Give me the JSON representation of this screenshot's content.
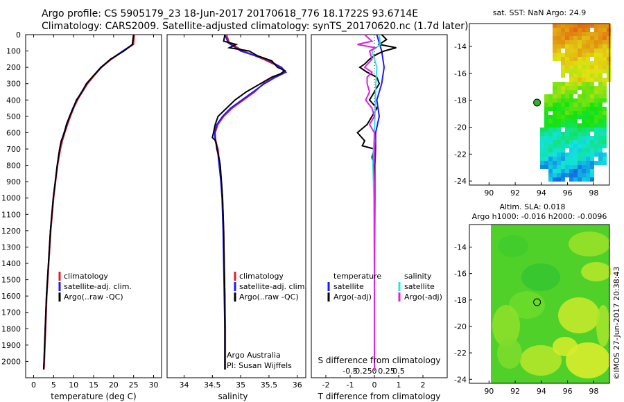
{
  "header": {
    "line1": "Argo profile: CS 5905179_23 18-Jun-2017 20170618_776 18.1722S 93.6714E",
    "line2": "Climatology: CARS2009. Satellite-adjusted climatology: synTS_20170620.nc (1.7d later)"
  },
  "colors": {
    "climatology": "#e02020",
    "satellite": "#1a1aff",
    "argo": "#000000",
    "argo_salinity_diff": "#e020e0",
    "satellite_salinity_diff": "#30e0e0"
  },
  "chart_data": [
    {
      "type": "line",
      "id": "temperature",
      "xlabel": "temperature (deg C)",
      "ylabel": "",
      "xlim": [
        -2,
        32
      ],
      "ylim": [
        2100,
        0
      ],
      "xticks": [
        "0",
        "5",
        "10",
        "15",
        "20",
        "25",
        "30"
      ],
      "xtick_values": [
        0,
        5,
        10,
        15,
        20,
        25,
        30
      ],
      "yticks": [
        "0",
        "100",
        "200",
        "300",
        "400",
        "500",
        "600",
        "700",
        "800",
        "900",
        "1000",
        "1100",
        "1200",
        "1300",
        "1400",
        "1500",
        "1600",
        "1700",
        "1800",
        "1900",
        "2000"
      ],
      "ytick_values": [
        0,
        100,
        200,
        300,
        400,
        500,
        600,
        700,
        800,
        900,
        1000,
        1100,
        1200,
        1300,
        1400,
        1500,
        1600,
        1700,
        1800,
        1900,
        2000
      ],
      "legend": [
        "climatology",
        "satellite-adj. clim.",
        "Argo(..raw -QC)"
      ],
      "legend_position": "lower-center",
      "series": [
        {
          "name": "climatology",
          "depth": [
            0,
            60,
            100,
            150,
            200,
            250,
            300,
            350,
            400,
            450,
            500,
            550,
            600,
            650,
            700,
            800,
            900,
            1000,
            1200,
            1400,
            1600,
            1800,
            2000,
            2050
          ],
          "values": [
            25.2,
            25.0,
            22.5,
            19.5,
            17.0,
            15.2,
            13.5,
            12.2,
            11.0,
            10.0,
            9.2,
            8.5,
            7.8,
            7.2,
            6.7,
            6.0,
            5.5,
            5.0,
            4.3,
            3.8,
            3.3,
            3.0,
            2.7,
            2.6
          ]
        },
        {
          "name": "satellite-adj. clim.",
          "depth": [
            0,
            60,
            100,
            150,
            200,
            250,
            300,
            350,
            400,
            450,
            500,
            550,
            600,
            650,
            700,
            800,
            900,
            1000,
            1200,
            1400,
            1600,
            1800,
            2000,
            2050
          ],
          "values": [
            25.0,
            24.8,
            22.3,
            19.3,
            16.8,
            15.0,
            13.3,
            12.0,
            10.8,
            9.8,
            9.0,
            8.3,
            7.6,
            7.0,
            6.5,
            5.9,
            5.4,
            4.9,
            4.2,
            3.7,
            3.2,
            2.9,
            2.6,
            2.5
          ]
        },
        {
          "name": "Argo(..raw -QC)",
          "depth": [
            0,
            60,
            100,
            150,
            200,
            250,
            300,
            350,
            400,
            450,
            500,
            550,
            600,
            650,
            700,
            800,
            900,
            1000,
            1200,
            1400,
            1600,
            1800,
            2000,
            2050
          ],
          "values": [
            25.0,
            24.7,
            22.6,
            19.2,
            16.9,
            15.0,
            13.2,
            12.1,
            10.7,
            9.9,
            9.0,
            8.2,
            7.7,
            6.9,
            6.5,
            5.9,
            5.4,
            4.9,
            4.2,
            3.7,
            3.2,
            2.9,
            2.6,
            2.5
          ]
        }
      ]
    },
    {
      "type": "line",
      "id": "salinity",
      "xlabel": "salinity",
      "xlim": [
        33.7,
        36.15
      ],
      "ylim": [
        2100,
        0
      ],
      "xticks": [
        "34",
        "34.5",
        "35",
        "35.5",
        "36"
      ],
      "xtick_values": [
        34,
        34.5,
        35,
        35.5,
        36
      ],
      "legend": [
        "climatology",
        "satellite-adj. clim.",
        "Argo(..raw -QC)"
      ],
      "legend_position": "lower-center",
      "annotation": [
        "Argo Australia",
        "PI: Susan Wijffels"
      ],
      "series": [
        {
          "name": "climatology",
          "depth": [
            0,
            50,
            100,
            150,
            200,
            230,
            260,
            300,
            350,
            400,
            450,
            500,
            550,
            600,
            650,
            700,
            800,
            900,
            1000,
            1200,
            1400,
            1600,
            1800,
            2000,
            2050
          ],
          "values": [
            34.75,
            34.8,
            35.05,
            35.4,
            35.7,
            35.78,
            35.6,
            35.4,
            35.25,
            35.05,
            34.85,
            34.7,
            34.6,
            34.55,
            34.56,
            34.6,
            34.63,
            34.66,
            34.68,
            34.7,
            34.71,
            34.72,
            34.73,
            34.73,
            34.73
          ]
        },
        {
          "name": "satellite-adj. clim.",
          "depth": [
            0,
            50,
            100,
            150,
            200,
            230,
            260,
            300,
            350,
            400,
            450,
            500,
            550,
            600,
            650,
            700,
            800,
            900,
            1000,
            1200,
            1400,
            1600,
            1800,
            2000,
            2050
          ],
          "values": [
            34.72,
            34.78,
            35.0,
            35.45,
            35.72,
            35.8,
            35.62,
            35.42,
            35.22,
            35.02,
            34.82,
            34.68,
            34.58,
            34.54,
            34.55,
            34.59,
            34.62,
            34.65,
            34.67,
            34.69,
            34.7,
            34.71,
            34.72,
            34.72,
            34.72
          ]
        },
        {
          "name": "Argo(..raw -QC)",
          "depth": [
            0,
            40,
            60,
            80,
            100,
            130,
            160,
            200,
            220,
            240,
            260,
            300,
            350,
            400,
            450,
            500,
            550,
            600,
            630,
            650,
            700,
            760,
            800,
            900,
            1000,
            1200,
            1400,
            1600,
            1800,
            2000,
            2050
          ],
          "values": [
            34.72,
            34.7,
            34.92,
            34.8,
            35.15,
            35.3,
            35.55,
            35.65,
            35.78,
            35.7,
            35.55,
            35.35,
            35.1,
            34.9,
            34.75,
            34.6,
            34.55,
            34.52,
            34.5,
            34.56,
            34.58,
            34.62,
            34.64,
            34.66,
            34.68,
            34.7,
            34.71,
            34.72,
            34.72,
            34.72,
            34.72
          ]
        }
      ]
    },
    {
      "type": "line",
      "id": "difference",
      "xlabel": "T difference from climatology",
      "xlabel_top": "S difference from climatology",
      "xlim": [
        -2.6,
        3.0
      ],
      "ylim": [
        2100,
        0
      ],
      "xticks": [
        "-2",
        "-1",
        "0",
        "1",
        "2"
      ],
      "xtick_values": [
        -2,
        -1,
        0,
        1,
        2
      ],
      "sticks": [
        "-0.5",
        "-0.25",
        "0",
        "0.25",
        "0.5"
      ],
      "stick_values": [
        -0.5,
        -0.25,
        0,
        0.25,
        0.5
      ],
      "legend_left_title": "temperature",
      "legend_right_title": "salinity",
      "legend": [
        "satellite",
        "Argo(-adj)",
        "satellite",
        "Argo(-adj)"
      ],
      "legend_position": "lower-center",
      "series": [
        {
          "name": "temperature satellite",
          "depth": [
            0,
            100,
            200,
            300,
            400,
            500,
            600,
            700,
            800,
            1000,
            1500,
            2000,
            2050
          ],
          "values": [
            0.1,
            0.3,
            0.4,
            0.3,
            0.1,
            0.2,
            0.05,
            0.05,
            0.02,
            0.02,
            0.0,
            0.0,
            0.0
          ]
        },
        {
          "name": "temperature Argo(-adj)",
          "depth": [
            0,
            30,
            60,
            80,
            100,
            120,
            150,
            180,
            200,
            230,
            260,
            300,
            350,
            400,
            450,
            500,
            550,
            600,
            650,
            680,
            700,
            750,
            800,
            1000,
            1500,
            2000,
            2050
          ],
          "values": [
            0.3,
            0.5,
            0.2,
            0.9,
            0.4,
            0.1,
            -0.2,
            -0.4,
            -0.6,
            -0.3,
            0.1,
            0.2,
            0.0,
            -0.2,
            0.1,
            -0.1,
            -0.3,
            -0.7,
            -0.4,
            -0.5,
            0.0,
            -0.1,
            0.0,
            0.0,
            0.0,
            0.0,
            0.0
          ]
        },
        {
          "name": "salinity satellite",
          "depth": [
            0,
            60,
            100,
            150,
            200,
            300,
            400,
            500,
            600,
            700,
            800,
            900,
            1000,
            1500,
            2000,
            2050
          ],
          "values": [
            0.1,
            0.12,
            -0.05,
            0.0,
            0.05,
            0.03,
            0.02,
            0.01,
            0.0,
            -0.02,
            -0.03,
            -0.02,
            -0.01,
            0.0,
            0.0,
            0.0
          ]
        },
        {
          "name": "salinity Argo(-adj)",
          "depth": [
            0,
            40,
            60,
            80,
            100,
            150,
            200,
            230,
            260,
            300,
            350,
            400,
            450,
            500,
            550,
            600,
            650,
            700,
            800,
            900,
            1000,
            1500,
            2000,
            2050
          ],
          "values": [
            -0.2,
            -0.05,
            -0.35,
            0.02,
            -0.1,
            -0.05,
            -0.2,
            -0.05,
            -0.15,
            -0.15,
            -0.1,
            -0.18,
            -0.05,
            0.0,
            -0.1,
            0.0,
            0.01,
            0.0,
            -0.01,
            0.0,
            0.0,
            0.0,
            0.0,
            0.0
          ]
        }
      ]
    },
    {
      "type": "heatmap",
      "id": "sst-map",
      "title": "sat. SST: NaN Argo: 24.9",
      "xticks": [
        "90",
        "92",
        "94",
        "96",
        "98"
      ],
      "xtick_values": [
        90,
        92,
        94,
        96,
        98
      ],
      "yticks": [
        "-14",
        "-16",
        "-18",
        "-20",
        "-22",
        "-24"
      ],
      "ytick_values": [
        -14,
        -16,
        -18,
        -20,
        -22,
        -24
      ],
      "xlim": [
        88.5,
        99.2
      ],
      "ylim": [
        -24.3,
        -12.3
      ],
      "marker": {
        "lon": 93.67,
        "lat": -18.17
      }
    },
    {
      "type": "heatmap",
      "id": "sla-map",
      "title_line1": "Altim. SLA: 0.018",
      "title_line2": "Argo h1000: -0.016 h2000: -0.0096",
      "xticks": [
        "90",
        "92",
        "94",
        "96",
        "98"
      ],
      "xtick_values": [
        90,
        92,
        94,
        96,
        98
      ],
      "yticks": [
        "-14",
        "-16",
        "-18",
        "-20",
        "-22",
        "-24"
      ],
      "ytick_values": [
        -14,
        -16,
        -18,
        -20,
        -22,
        -24
      ],
      "xlim": [
        88.5,
        99.2
      ],
      "ylim": [
        -24.3,
        -12.3
      ],
      "marker": {
        "lon": 93.67,
        "lat": -18.17
      }
    }
  ],
  "footer": {
    "stamp": "©IMOS 27-Jun-2017 20:38:43"
  }
}
